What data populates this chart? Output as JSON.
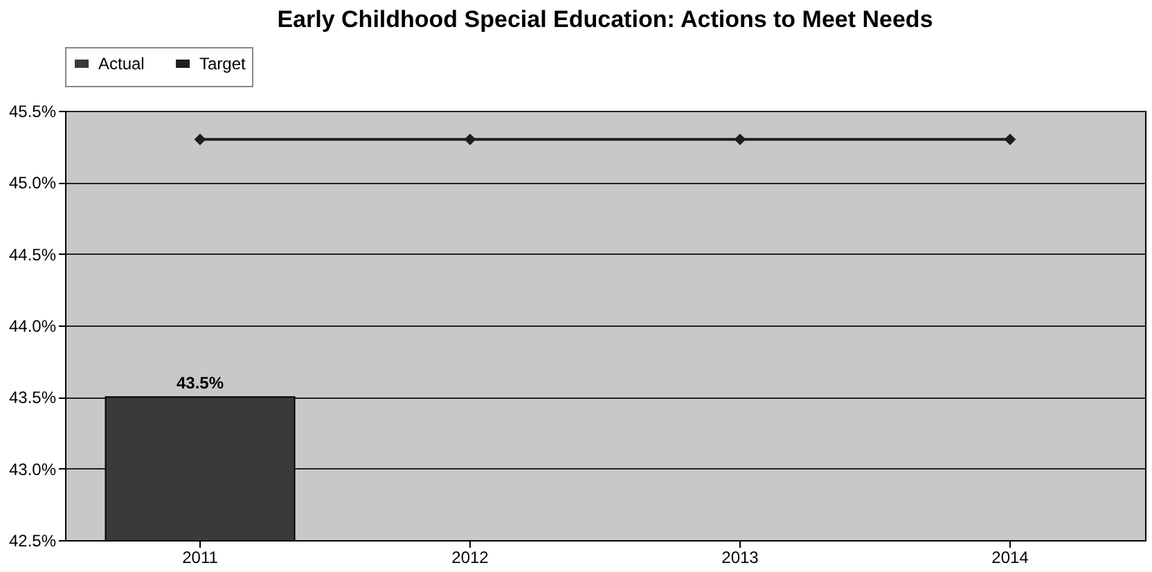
{
  "chart_data": {
    "type": "bar",
    "title": "Early Childhood Special Education:  Actions to Meet Needs",
    "categories": [
      "2011",
      "2012",
      "2013",
      "2014"
    ],
    "series": [
      {
        "name": "Actual",
        "color": "#3a3a3a",
        "values": [
          43.5,
          null,
          null,
          null
        ],
        "value_labels": [
          "43.5%",
          null,
          null,
          null
        ]
      },
      {
        "name": "Target",
        "type": "line",
        "color": "#1e1e1e",
        "values": [
          45.3,
          45.3,
          45.3,
          45.3
        ],
        "marker": "diamond"
      }
    ],
    "ylim": [
      42.5,
      45.5
    ],
    "yticks": [
      {
        "value": 42.5,
        "label": "42.5%"
      },
      {
        "value": 43.0,
        "label": "43.0%"
      },
      {
        "value": 43.5,
        "label": "43.5%"
      },
      {
        "value": 44.0,
        "label": "44.0%"
      },
      {
        "value": 44.5,
        "label": "44.5%"
      },
      {
        "value": 45.0,
        "label": "45.0%"
      },
      {
        "value": 45.5,
        "label": "45.5%"
      }
    ],
    "grid": "y",
    "legend": "top"
  }
}
